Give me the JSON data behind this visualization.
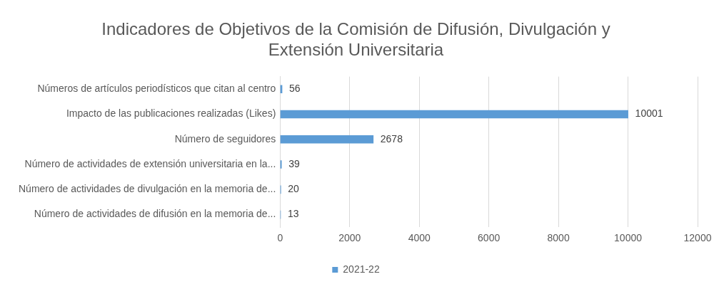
{
  "chart_data": {
    "type": "bar",
    "orientation": "horizontal",
    "title": "Indicadores de Objetivos de la Comisión de Difusión, Divulgación y Extensión Universitaria",
    "categories": [
      "Números de artículos periodísticos que citan al centro",
      "Impacto de las publicaciones realizadas (Likes)",
      "Número de seguidores",
      "Número de actividades de extensión universitaria en la...",
      "Número de actividades de divulgación en la memoria de...",
      "Número de actividades de difusión en la memoria de..."
    ],
    "series": [
      {
        "name": "2021-22",
        "color": "#5b9bd5",
        "values": [
          56,
          10001,
          2678,
          39,
          20,
          13
        ]
      }
    ],
    "xlim": [
      0,
      12000
    ],
    "xticks": [
      0,
      2000,
      4000,
      6000,
      8000,
      10000,
      12000
    ],
    "grid": "x",
    "legend": "bottom",
    "data_labels": true
  }
}
